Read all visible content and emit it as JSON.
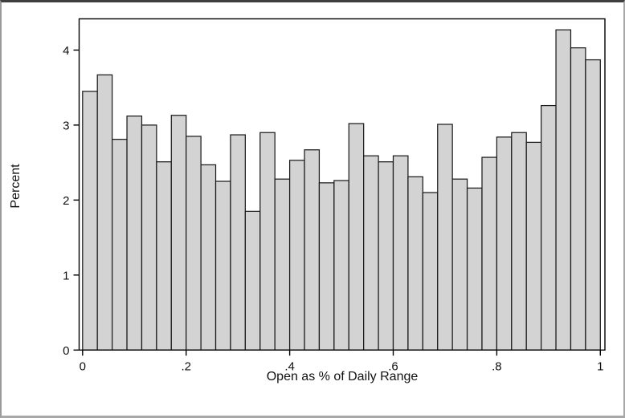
{
  "chart_data": {
    "type": "bar",
    "subtype": "histogram",
    "title": "",
    "xlabel": "Open as % of Daily Range",
    "ylabel": "Percent",
    "xlim": [
      0,
      1
    ],
    "ylim": [
      0,
      4.4
    ],
    "grid": false,
    "legend": null,
    "bin_start": 0,
    "bin_width": 0.0286,
    "num_bins": 35,
    "values": [
      3.45,
      3.67,
      2.81,
      3.12,
      3.0,
      2.51,
      3.13,
      2.85,
      2.47,
      2.25,
      2.87,
      1.85,
      2.9,
      2.28,
      2.53,
      2.67,
      2.23,
      2.26,
      3.02,
      2.59,
      2.51,
      2.59,
      2.31,
      2.1,
      3.01,
      2.28,
      2.16,
      2.57,
      2.84,
      2.9,
      2.77,
      3.26,
      4.27,
      4.03,
      3.87
    ],
    "x_ticks": [
      "0",
      ".2",
      ".4",
      ".6",
      ".8",
      "1"
    ],
    "x_tick_values": [
      0,
      0.2,
      0.4,
      0.6,
      0.8,
      1
    ],
    "y_ticks": [
      "0",
      "1",
      "2",
      "3",
      "4"
    ],
    "y_tick_values": [
      0,
      1,
      2,
      3,
      4
    ],
    "colors": {
      "bar_fill": "#d3d3d3",
      "bar_stroke": "#1c1c1c",
      "frame_stroke": "#000000",
      "text": "#111111",
      "background": "#ffffff"
    }
  }
}
